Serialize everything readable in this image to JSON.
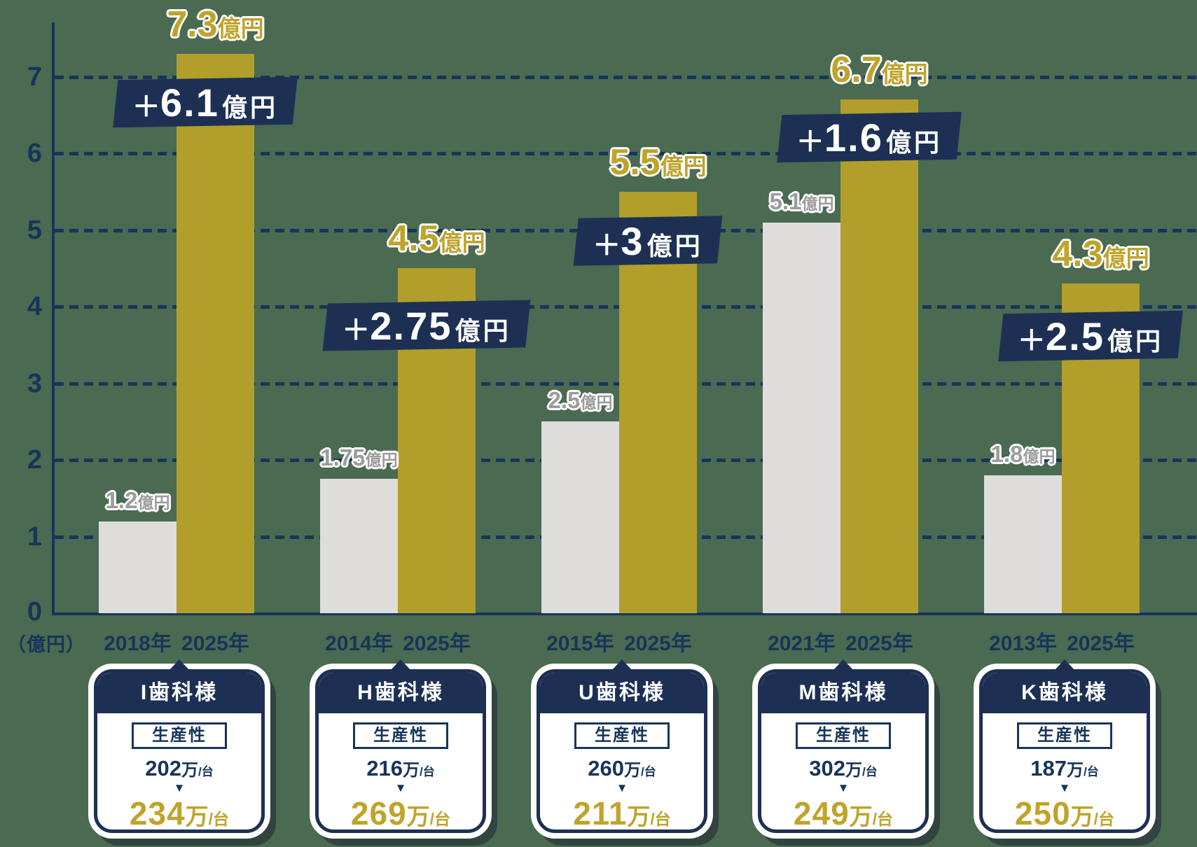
{
  "palette": {
    "background": "#4a6a52",
    "navy": "#17355a",
    "badge_navy": "#1d3054",
    "gold": "#b19e2b",
    "gold_text": "#bfa42c",
    "gray_bar": "#dedddc",
    "gray_text": "#9c9c9e",
    "white": "#ffffff"
  },
  "chart_data": {
    "type": "bar",
    "title": "",
    "unit_label": "（億円）",
    "value_unit": "億円",
    "ylim": [
      0,
      7.5
    ],
    "yticks": [
      7,
      6,
      5,
      4,
      3,
      2,
      1,
      0
    ],
    "grid": "horizontal dashed navy lines at each integer",
    "legend": "gray bar = earlier year, gold bar = 2025年",
    "groups": [
      {
        "clinic": "I歯科様",
        "year_before": "2018年",
        "year_after": "2025年",
        "value_before": 1.2,
        "value_after": 7.3,
        "before_num": "1.2",
        "after_num": "7.3",
        "unit": "億円",
        "gain_plus": "＋",
        "gain_num": "6.1",
        "gain_unit": "億円",
        "productivity": {
          "heading": "生産性",
          "before_num": "202",
          "after_num": "234",
          "unit_man": "万",
          "unit_per": "/台",
          "arrow": "▼"
        }
      },
      {
        "clinic": "H歯科様",
        "year_before": "2014年",
        "year_after": "2025年",
        "value_before": 1.75,
        "value_after": 4.5,
        "before_num": "1.75",
        "after_num": "4.5",
        "unit": "億円",
        "gain_plus": "＋",
        "gain_num": "2.75",
        "gain_unit": "億円",
        "productivity": {
          "heading": "生産性",
          "before_num": "216",
          "after_num": "269",
          "unit_man": "万",
          "unit_per": "/台",
          "arrow": "▼"
        }
      },
      {
        "clinic": "U歯科様",
        "year_before": "2015年",
        "year_after": "2025年",
        "value_before": 2.5,
        "value_after": 5.5,
        "before_num": "2.5",
        "after_num": "5.5",
        "unit": "億円",
        "gain_plus": "＋",
        "gain_num": "3",
        "gain_unit": "億円",
        "productivity": {
          "heading": "生産性",
          "before_num": "260",
          "after_num": "211",
          "unit_man": "万",
          "unit_per": "/台",
          "arrow": "▼"
        }
      },
      {
        "clinic": "M歯科様",
        "year_before": "2021年",
        "year_after": "2025年",
        "value_before": 5.1,
        "value_after": 6.7,
        "before_num": "5.1",
        "after_num": "6.7",
        "unit": "億円",
        "gain_plus": "＋",
        "gain_num": "1.6",
        "gain_unit": "億円",
        "productivity": {
          "heading": "生産性",
          "before_num": "302",
          "after_num": "249",
          "unit_man": "万",
          "unit_per": "/台",
          "arrow": "▼"
        }
      },
      {
        "clinic": "K歯科様",
        "year_before": "2013年",
        "year_after": "2025年",
        "value_before": 1.8,
        "value_after": 4.3,
        "before_num": "1.8",
        "after_num": "4.3",
        "unit": "億円",
        "gain_plus": "＋",
        "gain_num": "2.5",
        "gain_unit": "億円",
        "productivity": {
          "heading": "生産性",
          "before_num": "187",
          "after_num": "250",
          "unit_man": "万",
          "unit_per": "/台",
          "arrow": "▼"
        }
      }
    ]
  }
}
